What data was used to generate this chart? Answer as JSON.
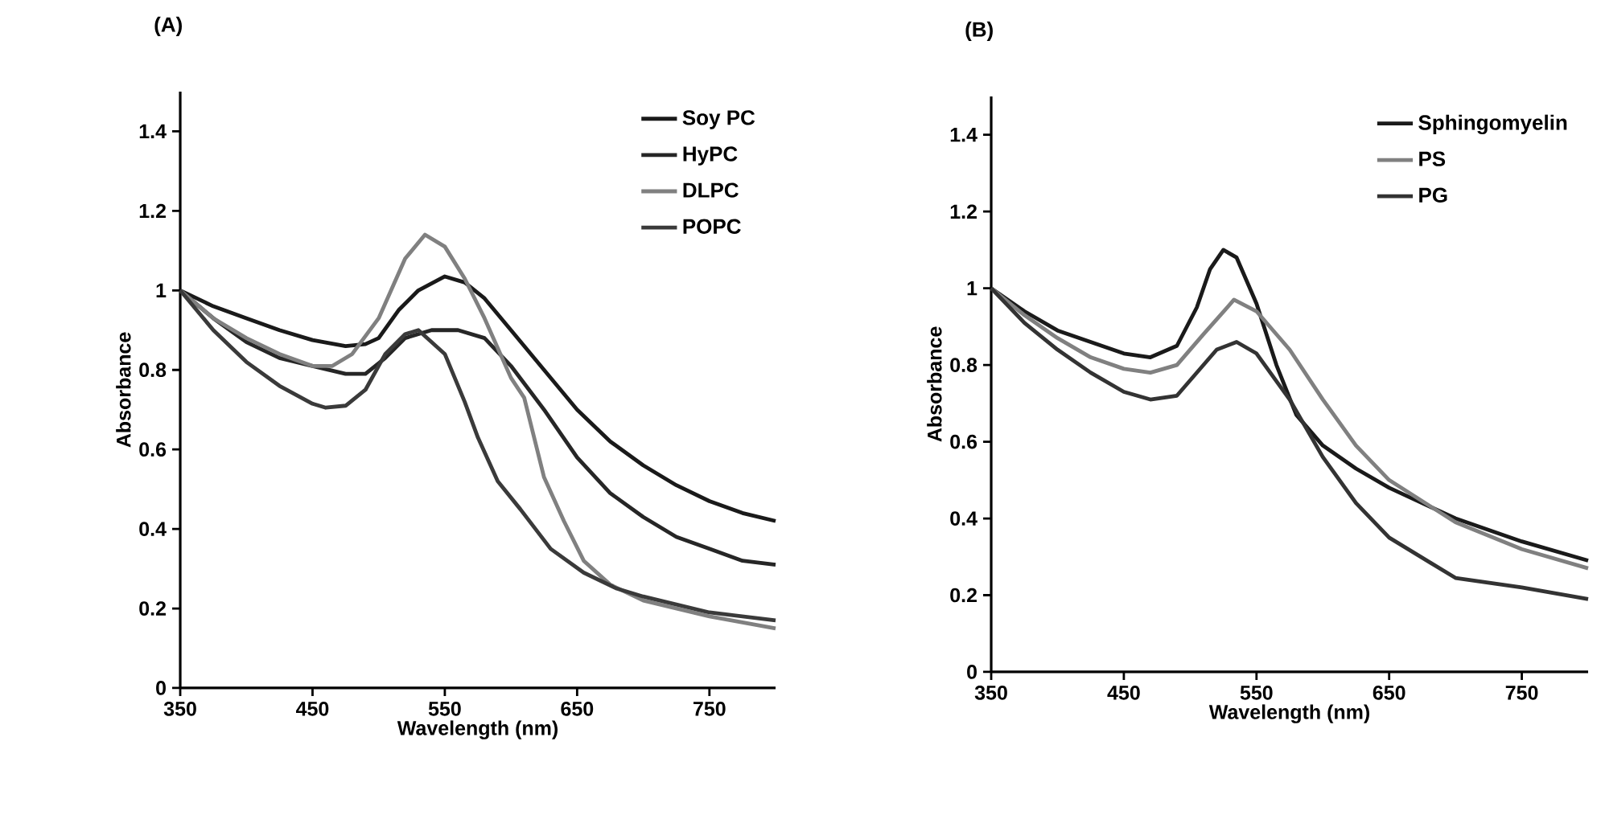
{
  "chart_data": [
    {
      "type": "line",
      "title": "(A)",
      "xlabel": "Wavelength (nm)",
      "ylabel": "Absorbance",
      "xlim": [
        350,
        800
      ],
      "ylim": [
        0,
        1.5
      ],
      "xticks": [
        350,
        450,
        550,
        650,
        750
      ],
      "yticks": [
        0,
        0.2,
        0.4,
        0.6,
        0.8,
        1,
        1.2,
        1.4
      ],
      "legend": "top right",
      "series": [
        {
          "name": "Soy PC",
          "color": "#1a1a1a",
          "x": [
            350,
            375,
            400,
            425,
            450,
            475,
            490,
            500,
            515,
            530,
            550,
            565,
            580,
            600,
            625,
            650,
            675,
            700,
            725,
            750,
            775,
            800
          ],
          "values": [
            1.0,
            0.96,
            0.93,
            0.9,
            0.875,
            0.86,
            0.865,
            0.88,
            0.95,
            1.0,
            1.035,
            1.02,
            0.98,
            0.9,
            0.8,
            0.7,
            0.62,
            0.56,
            0.51,
            0.47,
            0.44,
            0.42
          ]
        },
        {
          "name": "HyPC",
          "color": "#262626",
          "x": [
            350,
            375,
            400,
            425,
            450,
            475,
            490,
            505,
            520,
            540,
            560,
            580,
            600,
            625,
            650,
            675,
            700,
            725,
            750,
            775,
            800
          ],
          "values": [
            1.0,
            0.93,
            0.87,
            0.83,
            0.81,
            0.79,
            0.79,
            0.83,
            0.88,
            0.9,
            0.9,
            0.88,
            0.81,
            0.7,
            0.58,
            0.49,
            0.43,
            0.38,
            0.35,
            0.32,
            0.31
          ]
        },
        {
          "name": "DLPC",
          "color": "#808080",
          "x": [
            350,
            375,
            400,
            425,
            450,
            465,
            480,
            500,
            520,
            535,
            550,
            565,
            580,
            600,
            610,
            625,
            640,
            655,
            675,
            700,
            750,
            800
          ],
          "values": [
            1.0,
            0.93,
            0.88,
            0.84,
            0.81,
            0.81,
            0.84,
            0.93,
            1.08,
            1.14,
            1.11,
            1.03,
            0.93,
            0.78,
            0.73,
            0.53,
            0.42,
            0.32,
            0.26,
            0.22,
            0.18,
            0.15
          ]
        },
        {
          "name": "POPC",
          "color": "#3a3a3a",
          "x": [
            350,
            375,
            400,
            425,
            450,
            460,
            475,
            490,
            505,
            520,
            530,
            550,
            565,
            575,
            590,
            607,
            630,
            655,
            680,
            700,
            750,
            800
          ],
          "values": [
            1.0,
            0.9,
            0.82,
            0.76,
            0.715,
            0.705,
            0.71,
            0.75,
            0.84,
            0.89,
            0.9,
            0.84,
            0.72,
            0.63,
            0.52,
            0.45,
            0.35,
            0.29,
            0.25,
            0.23,
            0.19,
            0.17
          ]
        }
      ]
    },
    {
      "type": "line",
      "title": "(B)",
      "xlabel": "Wavelength (nm)",
      "ylabel": "Absorbance",
      "xlim": [
        350,
        800
      ],
      "ylim": [
        0,
        1.5
      ],
      "xticks": [
        350,
        450,
        550,
        650,
        750
      ],
      "yticks": [
        0,
        0.2,
        0.4,
        0.6,
        0.8,
        1,
        1.2,
        1.4
      ],
      "legend": "top right",
      "series": [
        {
          "name": "Sphingomyelin",
          "color": "#1a1a1a",
          "x": [
            350,
            375,
            400,
            425,
            450,
            470,
            490,
            505,
            515,
            525,
            535,
            550,
            565,
            580,
            600,
            625,
            650,
            700,
            750,
            800
          ],
          "values": [
            1.0,
            0.94,
            0.89,
            0.86,
            0.83,
            0.82,
            0.85,
            0.95,
            1.05,
            1.1,
            1.08,
            0.96,
            0.8,
            0.67,
            0.59,
            0.53,
            0.48,
            0.4,
            0.34,
            0.29
          ]
        },
        {
          "name": "PS",
          "color": "#808080",
          "x": [
            350,
            375,
            400,
            425,
            450,
            470,
            490,
            510,
            533,
            550,
            575,
            600,
            625,
            650,
            700,
            750,
            800
          ],
          "values": [
            1.0,
            0.93,
            0.87,
            0.82,
            0.79,
            0.78,
            0.8,
            0.88,
            0.97,
            0.94,
            0.84,
            0.71,
            0.59,
            0.5,
            0.39,
            0.32,
            0.27
          ]
        },
        {
          "name": "PG",
          "color": "#333333",
          "x": [
            350,
            375,
            400,
            425,
            450,
            470,
            490,
            505,
            520,
            535,
            550,
            575,
            600,
            625,
            650,
            700,
            750,
            800
          ],
          "values": [
            1.0,
            0.91,
            0.84,
            0.78,
            0.73,
            0.71,
            0.72,
            0.78,
            0.84,
            0.86,
            0.83,
            0.71,
            0.56,
            0.44,
            0.35,
            0.245,
            0.22,
            0.19
          ]
        }
      ]
    }
  ]
}
